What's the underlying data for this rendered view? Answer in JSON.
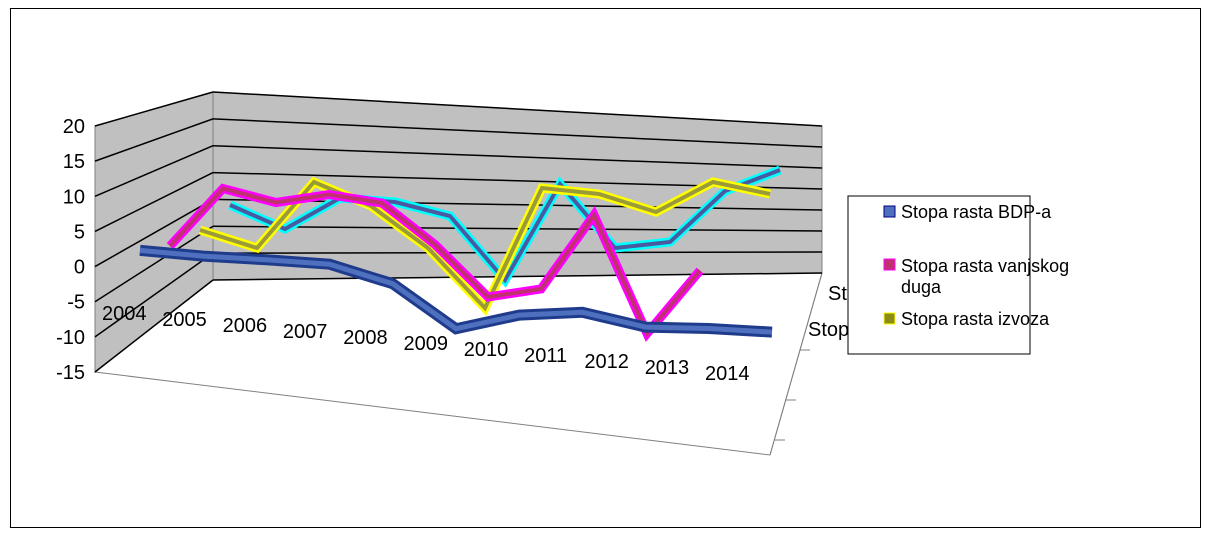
{
  "chart_data": {
    "type": "line",
    "title": "",
    "xlabel": "",
    "ylabel": "",
    "ylim": [
      -15,
      20
    ],
    "y_ticks": [
      "20",
      "15",
      "10",
      "5",
      "0",
      "-5",
      "-10",
      "-15"
    ],
    "categories": [
      "2004",
      "2005",
      "2006",
      "2007",
      "2008",
      "2009",
      "2010",
      "2011",
      "2012",
      "2013",
      "2014"
    ],
    "series_axis_labels": [
      "St",
      "Stop"
    ],
    "series": [
      {
        "name": "Stopa rasta BDP-a",
        "color": "#1f3b8c",
        "values": [
          4.1,
          4.2,
          4.8,
          5.2,
          2.1,
          -6.9,
          -2.3,
          -0.2,
          -2.2,
          -1.1,
          -0.5
        ]
      },
      {
        "name": "Stopa rasta vanjskog duga",
        "color": "#ff00ff",
        "values": [
          8,
          19,
          17,
          19,
          18,
          11,
          2,
          4,
          18,
          -3,
          9
        ]
      },
      {
        "name": "Stopa rasta izvoza",
        "color": "#ffff00",
        "values": [
          10,
          7,
          18,
          14,
          7,
          -3,
          17,
          16,
          13,
          18,
          16
        ]
      },
      {
        "name": "",
        "color": "#00ffff",
        "values": [
          15,
          10,
          16,
          15,
          12,
          -1,
          18,
          5,
          6,
          16,
          20
        ]
      }
    ],
    "legend": {
      "placement": "right",
      "entries": [
        "Stopa rasta BDP-a",
        "Stopa rasta vanjskog duga",
        "Stopa rasta izvoza"
      ],
      "marker_colors": [
        "#4f6fbf",
        "#c0326e",
        "#8c8c1a"
      ]
    },
    "grid": true
  }
}
